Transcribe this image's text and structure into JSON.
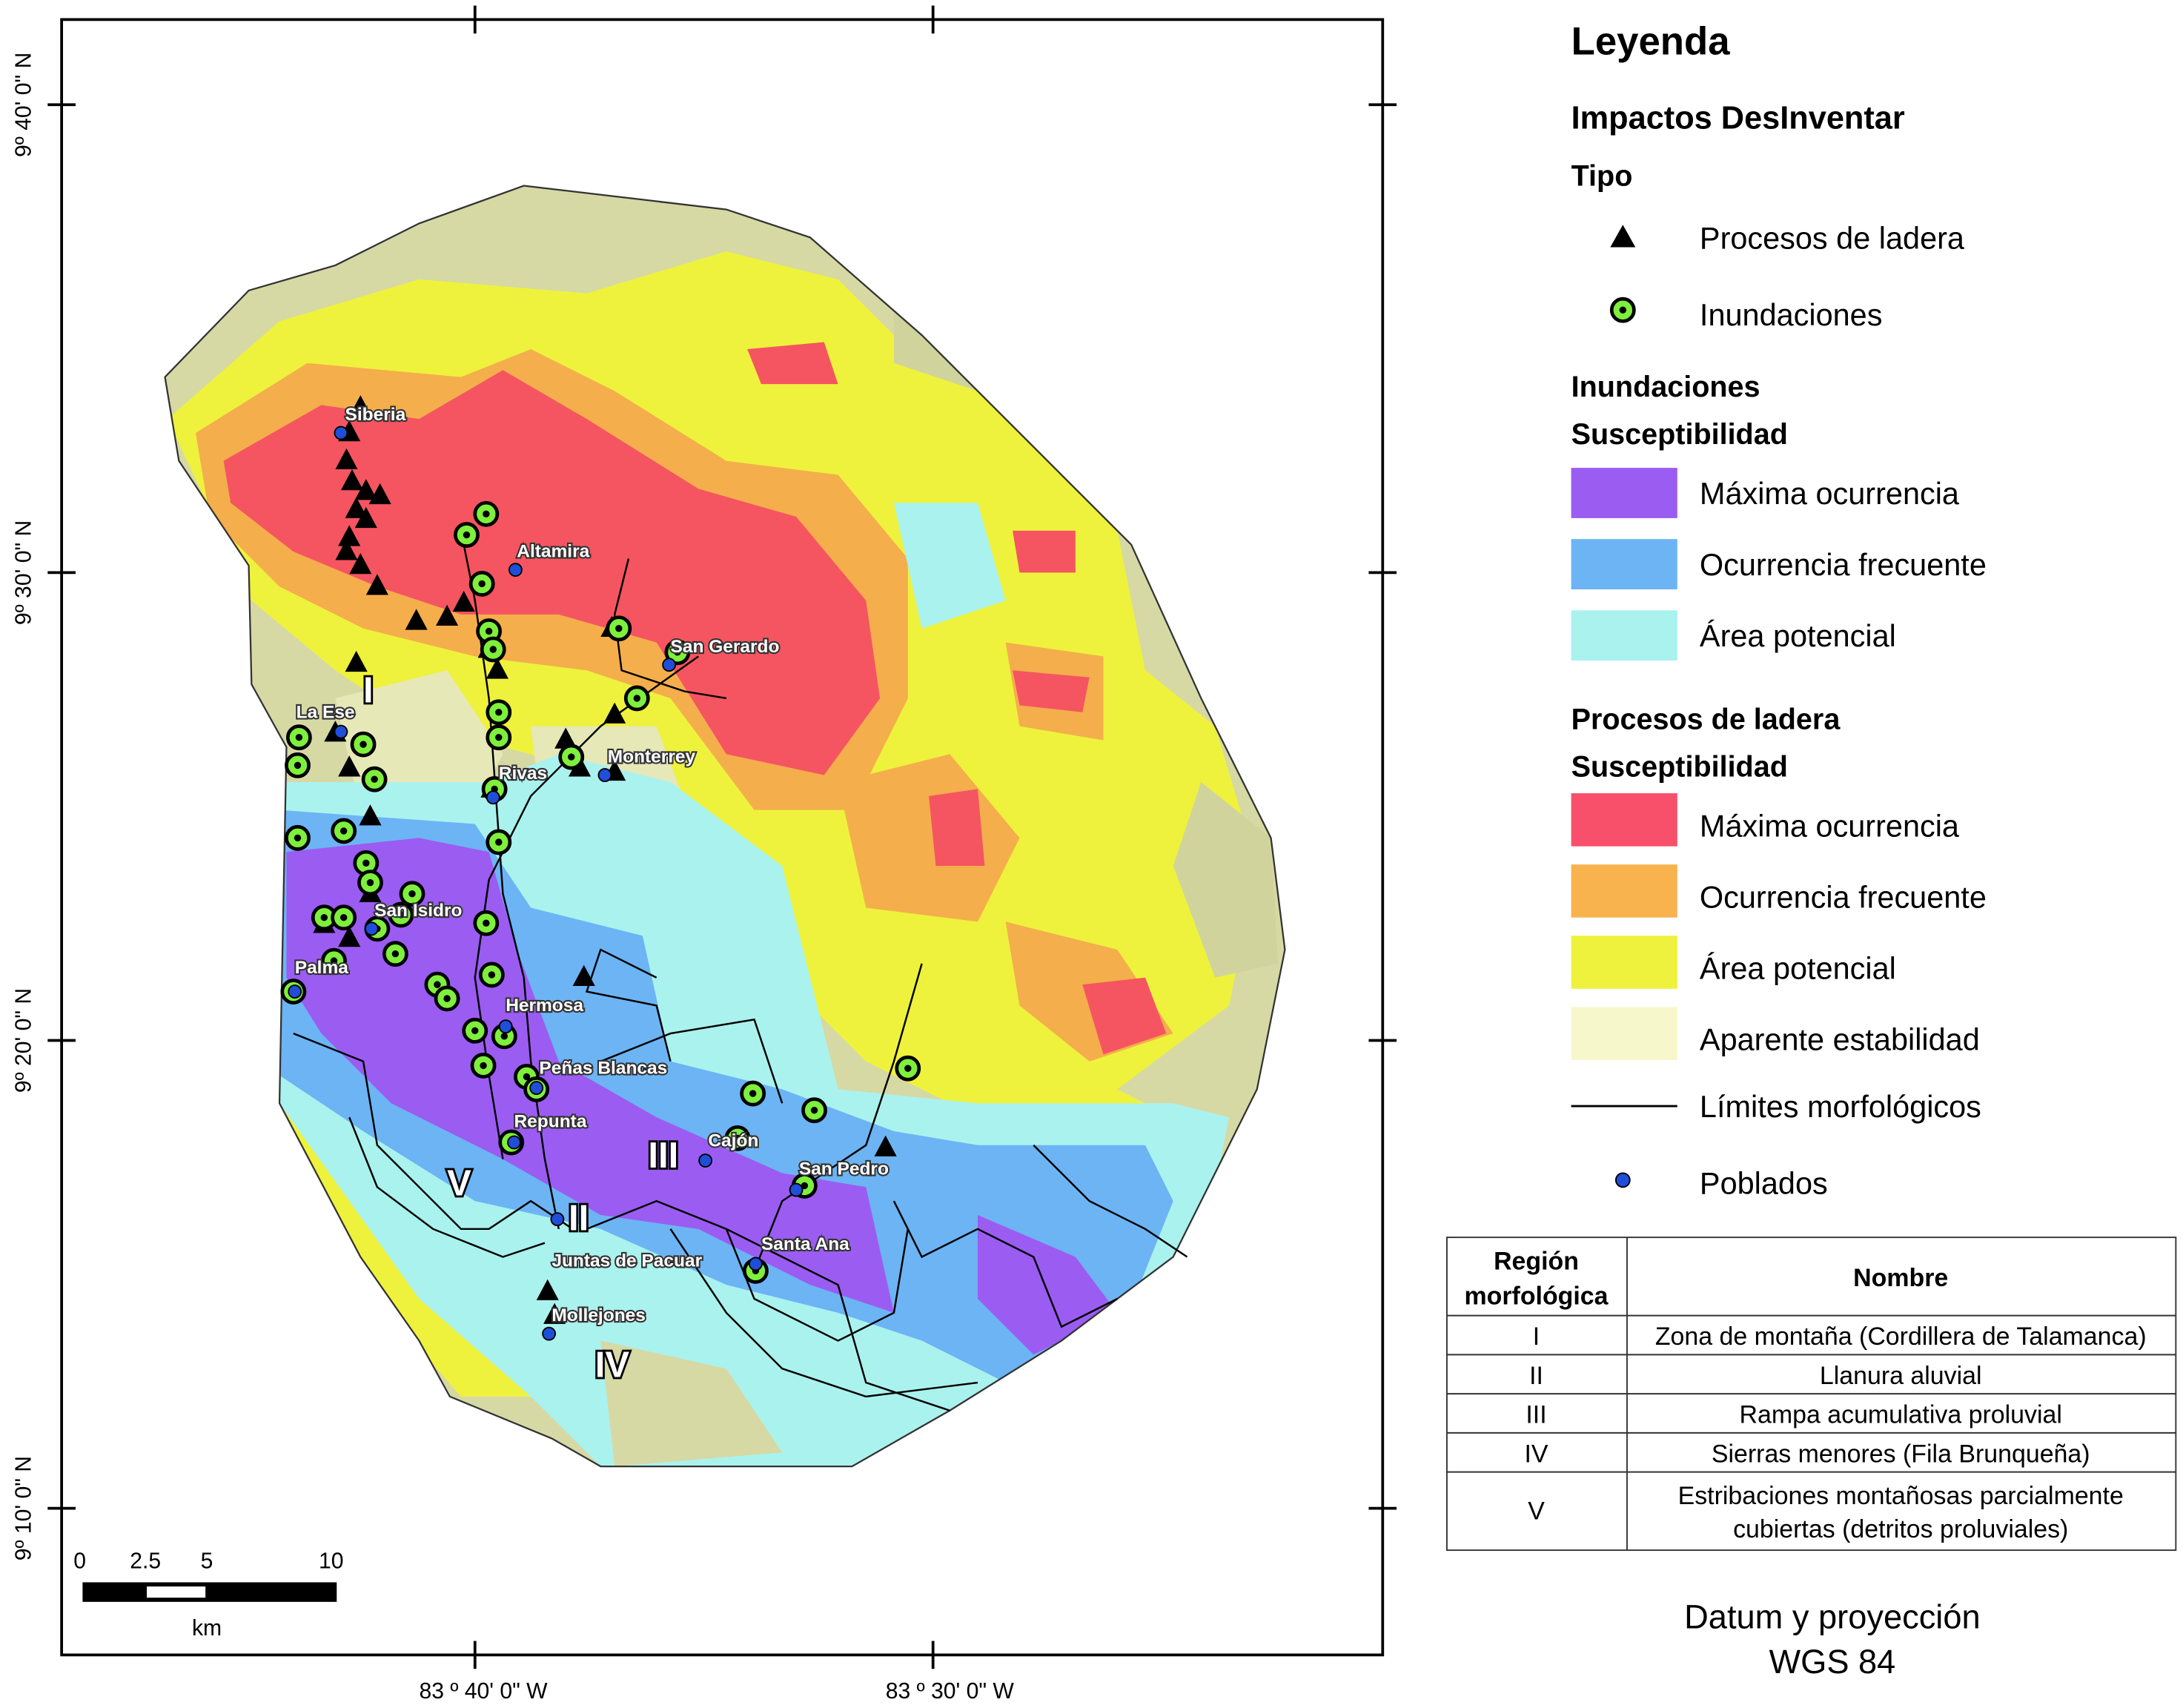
{
  "map": {
    "lat_labels": [
      "9º 40' 0\" N",
      "9º 30' 0\" N",
      "9º 20' 0\" N",
      "9º 10' 0\" N"
    ],
    "lon_labels": [
      "83 º 40' 0\" W",
      "83 º 30' 0\" W"
    ],
    "places": [
      "Siberia",
      "Altamira",
      "San Gerardo",
      "La Ese",
      "Monterrey",
      "Rivas",
      "San Isidro",
      "Palma",
      "Hermosa",
      "Peñas Blancas",
      "Repunta",
      "Cajón",
      "San Pedro",
      "Santa Ana",
      "Juntas de Pacuar",
      "Mollejones"
    ],
    "regions": [
      "I",
      "II",
      "III",
      "IV",
      "V"
    ],
    "scale": {
      "ticks": [
        "0",
        "2.5",
        "5",
        "10"
      ],
      "unit": "km"
    }
  },
  "legend": {
    "title": "Leyenda",
    "impacts_title": "Impactos DesInventar",
    "type_title": "Tipo",
    "types": [
      {
        "label": "Procesos de ladera",
        "icon": "black-triangle"
      },
      {
        "label": "Inundaciones",
        "icon": "green-ring-dot"
      }
    ],
    "flood_title": "Inundaciones",
    "flood_sub": "Susceptibilidad",
    "flood_classes": [
      {
        "label": "Máxima ocurrencia",
        "color": "#9b5cf2"
      },
      {
        "label": "Ocurrencia frecuente",
        "color": "#6cb4f4"
      },
      {
        "label": "Área potencial",
        "color": "#aaf2ee"
      }
    ],
    "slope_title": "Procesos de ladera",
    "slope_sub": "Susceptibilidad",
    "slope_classes": [
      {
        "label": "Máxima ocurrencia",
        "color": "#f8506a"
      },
      {
        "label": "Ocurrencia frecuente",
        "color": "#f8b24e"
      },
      {
        "label": "Área potencial",
        "color": "#eef23c"
      },
      {
        "label": "Aparente estabilidad",
        "color": "#f6f8cc"
      }
    ],
    "limits_label": "Límites morfológicos",
    "towns_label": "Poblados"
  },
  "table": {
    "headers": [
      "Región morfológica",
      "Nombre"
    ],
    "header_lines": [
      "Región",
      "morfológica"
    ],
    "rows": [
      {
        "region": "I",
        "name": "Zona de montaña (Cordillera de Talamanca)"
      },
      {
        "region": "II",
        "name": "Llanura aluvial"
      },
      {
        "region": "III",
        "name": "Rampa acumulativa proluvial"
      },
      {
        "region": "IV",
        "name": "Sierras menores (Fila Brunqueña)"
      },
      {
        "region": "V",
        "name": "Estribaciones montañosas parcialmente",
        "name2": "cubiertas (detritos proluviales)"
      }
    ]
  },
  "datum": {
    "line1": "Datum y proyección",
    "line2": "WGS 84"
  }
}
